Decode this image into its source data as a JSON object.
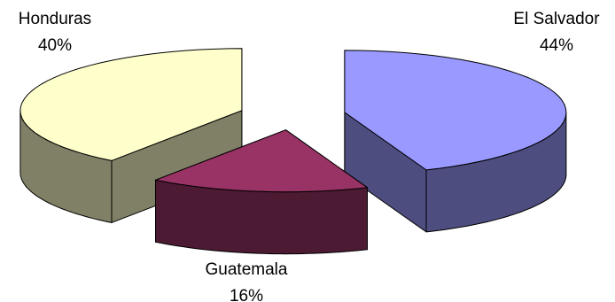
{
  "chart_data": {
    "type": "pie3d",
    "categories": [
      "El Salvador",
      "Guatemala",
      "Honduras"
    ],
    "values": [
      44,
      16,
      40
    ],
    "value_labels": [
      "44%",
      "16%",
      "40%"
    ],
    "colors": [
      "#9999ff",
      "#993366",
      "#ffffcc"
    ]
  }
}
